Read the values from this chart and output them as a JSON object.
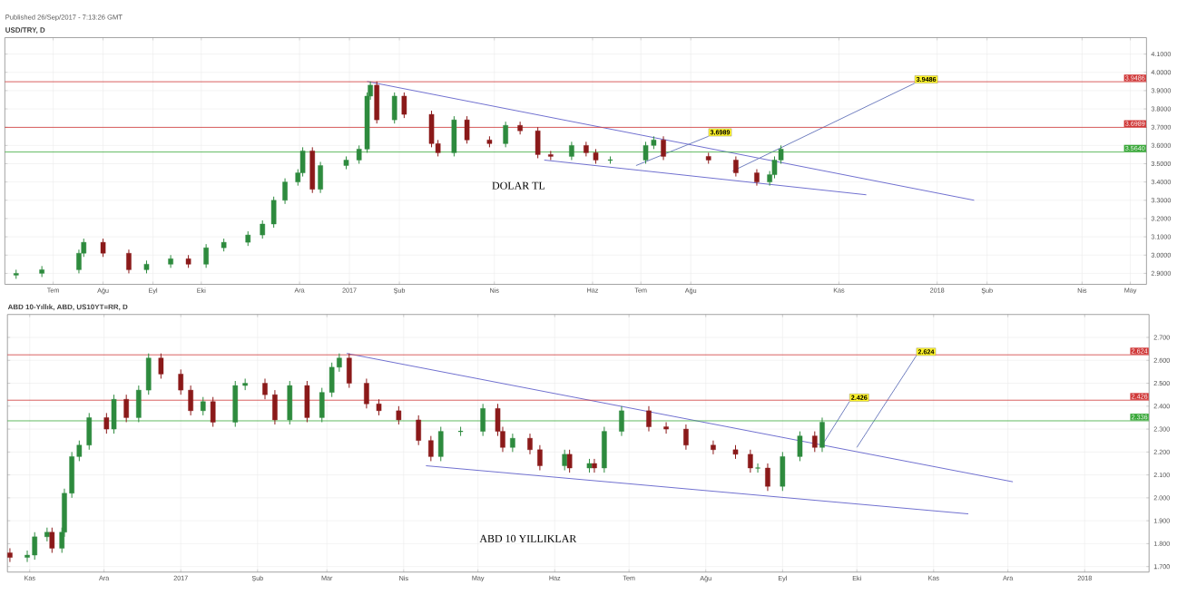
{
  "chart_data": [
    {
      "type": "candlestick",
      "subtitle": "Published 26/Sep/2017 - 7:13:26 GMT",
      "title": "USD/TRY, D",
      "x": [
        "2016-06-08",
        "2016-06-24",
        "2016-07-17",
        "2016-07-20",
        "2016-08-01",
        "2016-08-17",
        "2016-08-28",
        "2016-09-12",
        "2016-09-23",
        "2016-10-04",
        "2016-10-15",
        "2016-10-30",
        "2016-11-08",
        "2016-11-15",
        "2016-11-22",
        "2016-11-30",
        "2016-12-03",
        "2016-12-09",
        "2016-12-14",
        "2016-12-30",
        "2017-01-07",
        "2017-01-12",
        "2017-01-14",
        "2017-01-18",
        "2017-01-29",
        "2017-02-04",
        "2017-02-21",
        "2017-02-25",
        "2017-03-07",
        "2017-03-15",
        "2017-03-29",
        "2017-04-08",
        "2017-04-17",
        "2017-04-28",
        "2017-05-06",
        "2017-05-19",
        "2017-05-28",
        "2017-06-03",
        "2017-06-12",
        "2017-07-04",
        "2017-07-09",
        "2017-07-15",
        "2017-08-12",
        "2017-08-29",
        "2017-09-11",
        "2017-09-19",
        "2017-09-22",
        "2017-09-26"
      ],
      "ohlc": [
        [
          2.89,
          2.92,
          2.87,
          2.9
        ],
        [
          2.9,
          2.94,
          2.88,
          2.92
        ],
        [
          2.92,
          3.03,
          2.9,
          3.01
        ],
        [
          3.01,
          3.09,
          2.99,
          3.07
        ],
        [
          3.07,
          3.09,
          2.99,
          3.01
        ],
        [
          3.01,
          3.03,
          2.9,
          2.92
        ],
        [
          2.92,
          2.97,
          2.9,
          2.95
        ],
        [
          2.95,
          3.0,
          2.93,
          2.98
        ],
        [
          2.98,
          3.0,
          2.93,
          2.95
        ],
        [
          2.95,
          3.06,
          2.93,
          3.04
        ],
        [
          3.04,
          3.09,
          3.02,
          3.07
        ],
        [
          3.07,
          3.13,
          3.05,
          3.11
        ],
        [
          3.11,
          3.19,
          3.09,
          3.17
        ],
        [
          3.17,
          3.32,
          3.15,
          3.3
        ],
        [
          3.3,
          3.42,
          3.28,
          3.4
        ],
        [
          3.4,
          3.47,
          3.38,
          3.45
        ],
        [
          3.45,
          3.59,
          3.43,
          3.57
        ],
        [
          3.57,
          3.59,
          3.34,
          3.36
        ],
        [
          3.36,
          3.51,
          3.34,
          3.49
        ],
        [
          3.49,
          3.54,
          3.47,
          3.52
        ],
        [
          3.52,
          3.6,
          3.5,
          3.58
        ],
        [
          3.58,
          3.89,
          3.56,
          3.87
        ],
        [
          3.87,
          3.95,
          3.85,
          3.93
        ],
        [
          3.93,
          3.95,
          3.72,
          3.74
        ],
        [
          3.74,
          3.89,
          3.72,
          3.87
        ],
        [
          3.87,
          3.89,
          3.75,
          3.77
        ],
        [
          3.77,
          3.79,
          3.59,
          3.61
        ],
        [
          3.61,
          3.63,
          3.54,
          3.56
        ],
        [
          3.56,
          3.76,
          3.54,
          3.74
        ],
        [
          3.74,
          3.76,
          3.61,
          3.63
        ],
        [
          3.63,
          3.65,
          3.59,
          3.61
        ],
        [
          3.61,
          3.73,
          3.59,
          3.71
        ],
        [
          3.71,
          3.73,
          3.66,
          3.68
        ],
        [
          3.68,
          3.7,
          3.53,
          3.55
        ],
        [
          3.55,
          3.57,
          3.52,
          3.54
        ],
        [
          3.54,
          3.62,
          3.52,
          3.6
        ],
        [
          3.6,
          3.62,
          3.54,
          3.56
        ],
        [
          3.56,
          3.58,
          3.5,
          3.52
        ],
        [
          3.52,
          3.54,
          3.5,
          3.52
        ],
        [
          3.52,
          3.62,
          3.5,
          3.6
        ],
        [
          3.6,
          3.65,
          3.58,
          3.63
        ],
        [
          3.63,
          3.65,
          3.52,
          3.54
        ],
        [
          3.54,
          3.56,
          3.5,
          3.52
        ],
        [
          3.52,
          3.54,
          3.43,
          3.45
        ],
        [
          3.45,
          3.47,
          3.38,
          3.4
        ],
        [
          3.4,
          3.46,
          3.38,
          3.44
        ],
        [
          3.44,
          3.54,
          3.42,
          3.52
        ],
        [
          3.52,
          3.6,
          3.5,
          3.58
        ]
      ],
      "xlim": [
        "2016-06-01",
        "2018-05-11"
      ],
      "xticks": [
        {
          "value": "2016-07-01",
          "label": "Tem"
        },
        {
          "value": "2016-08-01",
          "label": "Ağu"
        },
        {
          "value": "2016-09-01",
          "label": "Eyl"
        },
        {
          "value": "2016-10-01",
          "label": "Eki"
        },
        {
          "value": "2016-12-01",
          "label": "Ara"
        },
        {
          "value": "2017-01-01",
          "label": "2017"
        },
        {
          "value": "2017-02-01",
          "label": "Şub"
        },
        {
          "value": "2017-04-01",
          "label": "Nis"
        },
        {
          "value": "2017-06-01",
          "label": "Haz"
        },
        {
          "value": "2017-07-01",
          "label": "Tem"
        },
        {
          "value": "2017-08-01",
          "label": "Ağu"
        },
        {
          "value": "2017-11-01",
          "label": "Kas"
        },
        {
          "value": "2018-01-01",
          "label": "2018"
        },
        {
          "value": "2018-02-01",
          "label": "Şub"
        },
        {
          "value": "2018-04-01",
          "label": "Nis"
        },
        {
          "value": "2018-05-01",
          "label": "May"
        }
      ],
      "ylim": [
        2.84,
        4.19
      ],
      "yticks": [
        {
          "value": 2.9,
          "label": "2.9000"
        },
        {
          "value": 3.0,
          "label": "3.0000"
        },
        {
          "value": 3.1,
          "label": "3.1000"
        },
        {
          "value": 3.2,
          "label": "3.2000"
        },
        {
          "value": 3.3,
          "label": "3.3000"
        },
        {
          "value": 3.4,
          "label": "3.4000"
        },
        {
          "value": 3.5,
          "label": "3.5000"
        },
        {
          "value": 3.6,
          "label": "3.6000"
        },
        {
          "value": 3.7,
          "label": "3.7000"
        },
        {
          "value": 3.8,
          "label": "3.8000"
        },
        {
          "value": 3.9,
          "label": "3.9000"
        },
        {
          "value": 4.0,
          "label": "4.0000"
        },
        {
          "value": 4.1,
          "label": "4.1000"
        }
      ],
      "grid": true,
      "series": [
        {
          "type": "line",
          "color": "#7070d0",
          "x": [
            "2017-01-12",
            "2018-01-24"
          ],
          "values": [
            3.95,
            3.3
          ]
        },
        {
          "type": "line",
          "color": "#7070d0",
          "x": [
            "2017-05-02",
            "2017-11-18"
          ],
          "values": [
            3.52,
            3.33
          ]
        },
        {
          "type": "line",
          "color": "#7080c0",
          "x": [
            "2017-06-28",
            "2017-08-12"
          ],
          "values": [
            3.49,
            3.65
          ]
        },
        {
          "type": "line",
          "color": "#7080c0",
          "x": [
            "2017-08-27",
            "2017-12-18"
          ],
          "values": [
            3.46,
            3.94
          ]
        }
      ],
      "ref_lines": [
        {
          "axis": "y",
          "value": 3.9486,
          "label": "3.9486",
          "color": "#d03838"
        },
        {
          "axis": "y",
          "value": 3.6989,
          "label": "3.6989",
          "color": "#d03838"
        },
        {
          "axis": "y",
          "value": 3.564,
          "label": "3.5640",
          "color": "#3aa83a"
        }
      ],
      "annotations": [
        "DOLAR TL",
        {
          "text": "3.6989",
          "x": "2017-08-12",
          "y": 3.65
        },
        {
          "text": "3.9486",
          "x": "2017-12-18",
          "y": 3.94
        }
      ]
    },
    {
      "type": "candlestick",
      "title": "ABD 10-Yıllık, ABD, US10YT=RR, D",
      "x": [
        "2016-10-24",
        "2016-10-31",
        "2016-11-03",
        "2016-11-08",
        "2016-11-10",
        "2016-11-14",
        "2016-11-15",
        "2016-11-18",
        "2016-11-21",
        "2016-11-25",
        "2016-12-02",
        "2016-12-05",
        "2016-12-10",
        "2016-12-15",
        "2016-12-19",
        "2016-12-24",
        "2017-01-01",
        "2017-01-05",
        "2017-01-10",
        "2017-01-14",
        "2017-01-23",
        "2017-01-27",
        "2017-02-04",
        "2017-02-08",
        "2017-02-14",
        "2017-02-21",
        "2017-02-27",
        "2017-03-03",
        "2017-03-06",
        "2017-03-10",
        "2017-03-17",
        "2017-03-22",
        "2017-03-30",
        "2017-04-07",
        "2017-04-12",
        "2017-04-16",
        "2017-04-24",
        "2017-05-03",
        "2017-05-09",
        "2017-05-11",
        "2017-05-15",
        "2017-05-22",
        "2017-05-26",
        "2017-06-05",
        "2017-06-07",
        "2017-06-15",
        "2017-06-17",
        "2017-06-21",
        "2017-06-28",
        "2017-07-09",
        "2017-07-16",
        "2017-07-24",
        "2017-08-04",
        "2017-08-13",
        "2017-08-19",
        "2017-08-22",
        "2017-08-26",
        "2017-09-01",
        "2017-09-08",
        "2017-09-14",
        "2017-09-17"
      ],
      "ohlc": [
        [
          1.76,
          1.78,
          1.72,
          1.74
        ],
        [
          1.74,
          1.77,
          1.72,
          1.75
        ],
        [
          1.75,
          1.85,
          1.73,
          1.83
        ],
        [
          1.83,
          1.87,
          1.81,
          1.85
        ],
        [
          1.85,
          1.87,
          1.76,
          1.78
        ],
        [
          1.78,
          1.87,
          1.76,
          1.85
        ],
        [
          1.85,
          2.04,
          1.83,
          2.02
        ],
        [
          2.02,
          2.2,
          2.0,
          2.18
        ],
        [
          2.18,
          2.25,
          2.16,
          2.23
        ],
        [
          2.23,
          2.37,
          2.21,
          2.35
        ],
        [
          2.35,
          2.37,
          2.28,
          2.3
        ],
        [
          2.3,
          2.45,
          2.28,
          2.43
        ],
        [
          2.43,
          2.45,
          2.33,
          2.35
        ],
        [
          2.35,
          2.49,
          2.33,
          2.47
        ],
        [
          2.47,
          2.63,
          2.45,
          2.61
        ],
        [
          2.61,
          2.63,
          2.52,
          2.54
        ],
        [
          2.54,
          2.56,
          2.45,
          2.47
        ],
        [
          2.47,
          2.49,
          2.36,
          2.38
        ],
        [
          2.38,
          2.44,
          2.36,
          2.42
        ],
        [
          2.42,
          2.44,
          2.31,
          2.33
        ],
        [
          2.33,
          2.51,
          2.31,
          2.49
        ],
        [
          2.49,
          2.52,
          2.47,
          2.5
        ],
        [
          2.5,
          2.52,
          2.43,
          2.45
        ],
        [
          2.45,
          2.47,
          2.32,
          2.34
        ],
        [
          2.34,
          2.51,
          2.32,
          2.49
        ],
        [
          2.49,
          2.51,
          2.33,
          2.35
        ],
        [
          2.35,
          2.48,
          2.33,
          2.46
        ],
        [
          2.46,
          2.59,
          2.44,
          2.57
        ],
        [
          2.57,
          2.63,
          2.55,
          2.61
        ],
        [
          2.61,
          2.63,
          2.48,
          2.5
        ],
        [
          2.5,
          2.52,
          2.39,
          2.41
        ],
        [
          2.41,
          2.43,
          2.36,
          2.38
        ],
        [
          2.38,
          2.4,
          2.32,
          2.34
        ],
        [
          2.34,
          2.36,
          2.23,
          2.25
        ],
        [
          2.25,
          2.27,
          2.16,
          2.18
        ],
        [
          2.18,
          2.31,
          2.16,
          2.29
        ],
        [
          2.29,
          2.31,
          2.27,
          2.29
        ],
        [
          2.29,
          2.41,
          2.27,
          2.39
        ],
        [
          2.39,
          2.41,
          2.27,
          2.29
        ],
        [
          2.29,
          2.31,
          2.2,
          2.22
        ],
        [
          2.22,
          2.28,
          2.2,
          2.26
        ],
        [
          2.26,
          2.28,
          2.19,
          2.21
        ],
        [
          2.21,
          2.23,
          2.12,
          2.14
        ],
        [
          2.14,
          2.21,
          2.12,
          2.19
        ],
        [
          2.19,
          2.21,
          2.11,
          2.13
        ],
        [
          2.13,
          2.17,
          2.11,
          2.15
        ],
        [
          2.15,
          2.17,
          2.11,
          2.13
        ],
        [
          2.13,
          2.31,
          2.11,
          2.29
        ],
        [
          2.29,
          2.4,
          2.27,
          2.38
        ],
        [
          2.38,
          2.4,
          2.29,
          2.31
        ],
        [
          2.31,
          2.33,
          2.28,
          2.3
        ],
        [
          2.3,
          2.32,
          2.21,
          2.23
        ],
        [
          2.23,
          2.25,
          2.19,
          2.21
        ],
        [
          2.21,
          2.23,
          2.17,
          2.19
        ],
        [
          2.19,
          2.21,
          2.11,
          2.13
        ],
        [
          2.13,
          2.15,
          2.11,
          2.13
        ],
        [
          2.13,
          2.15,
          2.03,
          2.05
        ],
        [
          2.05,
          2.2,
          2.03,
          2.18
        ],
        [
          2.18,
          2.29,
          2.16,
          2.27
        ],
        [
          2.27,
          2.29,
          2.2,
          2.22
        ],
        [
          2.22,
          2.35,
          2.2,
          2.33
        ]
      ],
      "xlim": [
        "2016-10-23",
        "2018-01-27"
      ],
      "xticks": [
        {
          "value": "2016-11-01",
          "label": "Kas"
        },
        {
          "value": "2016-12-01",
          "label": "Ara"
        },
        {
          "value": "2017-01-01",
          "label": "2017"
        },
        {
          "value": "2017-02-01",
          "label": "Şub"
        },
        {
          "value": "2017-03-01",
          "label": "Mar"
        },
        {
          "value": "2017-04-01",
          "label": "Nis"
        },
        {
          "value": "2017-05-01",
          "label": "May"
        },
        {
          "value": "2017-06-01",
          "label": "Haz"
        },
        {
          "value": "2017-07-01",
          "label": "Tem"
        },
        {
          "value": "2017-08-01",
          "label": "Ağu"
        },
        {
          "value": "2017-09-01",
          "label": "Eyl"
        },
        {
          "value": "2017-10-01",
          "label": "Eki"
        },
        {
          "value": "2017-11-01",
          "label": "Kas"
        },
        {
          "value": "2017-12-01",
          "label": "Ara"
        },
        {
          "value": "2018-01-01",
          "label": "2018"
        }
      ],
      "ylim": [
        1.676,
        2.8
      ],
      "yticks": [
        {
          "value": 1.7,
          "label": "1.700"
        },
        {
          "value": 1.8,
          "label": "1.800"
        },
        {
          "value": 1.9,
          "label": "1.900"
        },
        {
          "value": 2.0,
          "label": "2.000"
        },
        {
          "value": 2.1,
          "label": "2.100"
        },
        {
          "value": 2.2,
          "label": "2.200"
        },
        {
          "value": 2.3,
          "label": "2.300"
        },
        {
          "value": 2.4,
          "label": "2.400"
        },
        {
          "value": 2.5,
          "label": "2.500"
        },
        {
          "value": 2.6,
          "label": "2.600"
        },
        {
          "value": 2.7,
          "label": "2.700"
        }
      ],
      "grid": true,
      "series": [
        {
          "type": "line",
          "color": "#7070d0",
          "x": [
            "2017-03-09",
            "2017-12-03"
          ],
          "values": [
            2.63,
            2.07
          ]
        },
        {
          "type": "line",
          "color": "#7070d0",
          "x": [
            "2017-04-10",
            "2017-11-15"
          ],
          "values": [
            2.14,
            1.93
          ]
        },
        {
          "type": "line",
          "color": "#7080c0",
          "x": [
            "2017-09-17",
            "2017-09-28"
          ],
          "values": [
            2.23,
            2.42
          ]
        },
        {
          "type": "line",
          "color": "#7080c0",
          "x": [
            "2017-10-01",
            "2017-10-25"
          ],
          "values": [
            2.22,
            2.62
          ]
        }
      ],
      "ref_lines": [
        {
          "axis": "y",
          "value": 2.624,
          "label": "2.624",
          "color": "#d03838"
        },
        {
          "axis": "y",
          "value": 2.426,
          "label": "2.426",
          "color": "#d03838"
        },
        {
          "axis": "y",
          "value": 2.336,
          "label": "2.336",
          "color": "#3aa83a"
        }
      ],
      "annotations": [
        "ABD 10 YILLIKLAR",
        {
          "text": "2.426",
          "x": "2017-09-28",
          "y": 2.42
        },
        {
          "text": "2.624",
          "x": "2017-10-25",
          "y": 2.62
        }
      ]
    }
  ]
}
